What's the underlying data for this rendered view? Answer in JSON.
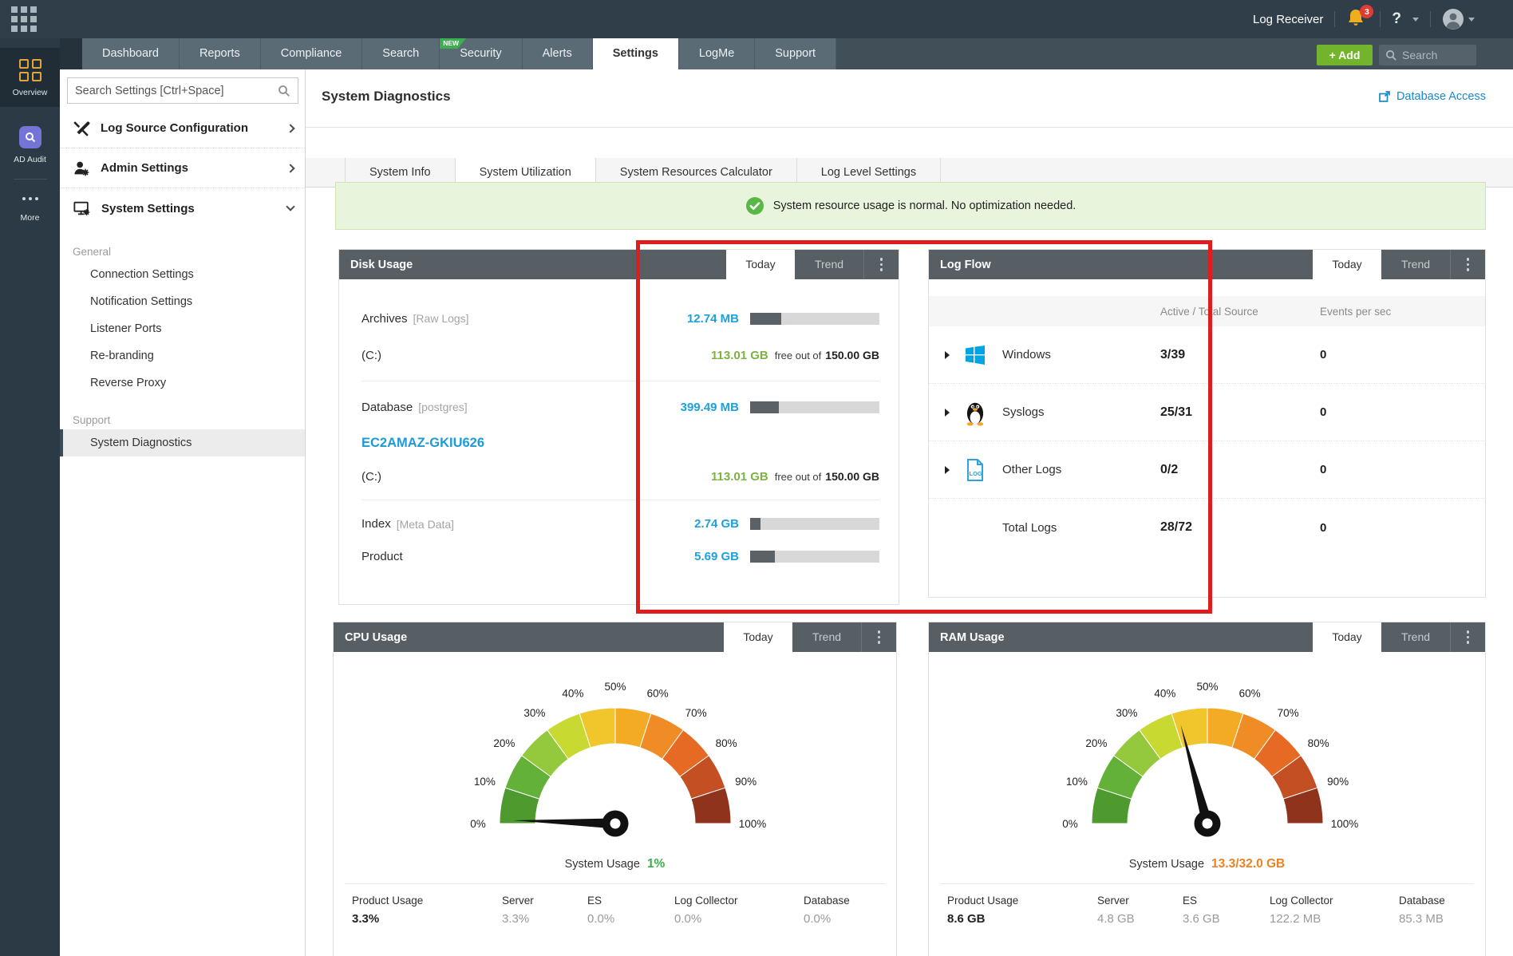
{
  "colors": {
    "topbar_bg": "#2f3e48",
    "navbar_tab_bg": "#5b6b76",
    "panel_header_bg": "#575f64",
    "accent_blue": "#1ea0da",
    "link_blue": "#1b87c9",
    "value_green": "#7db343",
    "usage_green": "#3cae4c",
    "usage_orange": "#ee8222",
    "add_green": "#72b52c",
    "annotation_red": "#de1e1e",
    "banner_bg": "#e9f4dc"
  },
  "topbar": {
    "log_receiver_label": "Log Receiver",
    "notification_count": "3",
    "help_label": "?"
  },
  "sidebar": {
    "overview_label": "Overview",
    "ad_audit_label": "AD Audit",
    "more_label": "More"
  },
  "navbar": {
    "tabs": [
      {
        "label": "Dashboard"
      },
      {
        "label": "Reports"
      },
      {
        "label": "Compliance"
      },
      {
        "label": "Search"
      },
      {
        "label": "Security",
        "badge": "NEW"
      },
      {
        "label": "Alerts"
      },
      {
        "label": "Settings"
      },
      {
        "label": "LogMe"
      },
      {
        "label": "Support"
      }
    ],
    "active_tab": "Settings",
    "add_label": "+ Add",
    "search_placeholder": "Search"
  },
  "settings_nav": {
    "search_placeholder": "Search Settings [Ctrl+Space]",
    "main_items": [
      {
        "label": "Log Source Configuration",
        "chevron": "right"
      },
      {
        "label": "Admin Settings",
        "chevron": "right"
      },
      {
        "label": "System Settings",
        "chevron": "down"
      }
    ],
    "sections": [
      {
        "title": "General",
        "items": [
          {
            "label": "Connection Settings"
          },
          {
            "label": "Notification Settings"
          },
          {
            "label": "Listener Ports"
          },
          {
            "label": "Re-branding"
          },
          {
            "label": "Reverse Proxy"
          }
        ]
      },
      {
        "title": "Support",
        "items": [
          {
            "label": "System Diagnostics",
            "active": true
          }
        ]
      }
    ]
  },
  "page": {
    "title": "System Diagnostics",
    "database_access_label": "Database Access",
    "tabs": [
      {
        "label": "System Info"
      },
      {
        "label": "System Utilization"
      },
      {
        "label": "System Resources Calculator"
      },
      {
        "label": "Log Level Settings"
      }
    ],
    "active_tab": "System Utilization",
    "banner_text": "System resource usage is normal. No optimization needed."
  },
  "disk_usage": {
    "title": "Disk Usage",
    "today_label": "Today",
    "trend_label": "Trend",
    "archives": {
      "name": "Archives",
      "tag": "[Raw Logs]",
      "value": "12.74 MB",
      "bar_pct": 24
    },
    "archives_drive": {
      "name": "(C:)",
      "free": "113.01 GB",
      "free_text": "free out of",
      "total": "150.00 GB"
    },
    "database": {
      "name": "Database",
      "tag": "[postgres]",
      "value": "399.49 MB",
      "bar_pct": 22
    },
    "host_link": "EC2AMAZ-GKIU626",
    "database_drive": {
      "name": "(C:)",
      "free": "113.01 GB",
      "free_text": "free out of",
      "total": "150.00 GB"
    },
    "index": {
      "name": "Index",
      "tag": "[Meta Data]",
      "value": "2.74 GB",
      "bar_pct": 8
    },
    "product": {
      "name": "Product",
      "value": "5.69 GB",
      "bar_pct": 19
    }
  },
  "log_flow": {
    "title": "Log Flow",
    "today_label": "Today",
    "trend_label": "Trend",
    "col_source": "Active / Total Source",
    "col_eps": "Events per sec",
    "rows": [
      {
        "label": "Windows",
        "ratio": "3/39",
        "eps": "0"
      },
      {
        "label": "Syslogs",
        "ratio": "25/31",
        "eps": "0"
      },
      {
        "label": "Other Logs",
        "ratio": "0/2",
        "eps": "0"
      },
      {
        "label": "Total Logs",
        "ratio": "28/72",
        "eps": "0"
      }
    ]
  },
  "cpu": {
    "title": "CPU Usage",
    "today_label": "Today",
    "trend_label": "Trend",
    "usage_label": "System Usage",
    "usage_value": "1%",
    "needle_pct": 1,
    "stats": [
      {
        "label": "Product Usage",
        "value": "3.3%"
      },
      {
        "label": "Server",
        "value": "3.3%"
      },
      {
        "label": "ES",
        "value": "0.0%"
      },
      {
        "label": "Log Collector",
        "value": "0.0%"
      },
      {
        "label": "Database",
        "value": "0.0%"
      }
    ]
  },
  "ram": {
    "title": "RAM Usage",
    "today_label": "Today",
    "trend_label": "Trend",
    "usage_label": "System Usage",
    "usage_value": "13.3/32.0 GB",
    "needle_pct": 41.6,
    "stats": [
      {
        "label": "Product Usage",
        "value": "8.6 GB"
      },
      {
        "label": "Server",
        "value": "4.8 GB"
      },
      {
        "label": "ES",
        "value": "3.6 GB"
      },
      {
        "label": "Log Collector",
        "value": "122.2 MB"
      },
      {
        "label": "Database",
        "value": "85.3 MB"
      }
    ]
  },
  "gauge": {
    "labels": [
      "0%",
      "10%",
      "20%",
      "30%",
      "40%",
      "50%",
      "60%",
      "70%",
      "80%",
      "90%",
      "100%"
    ],
    "colors": [
      "#4e9a2f",
      "#63b138",
      "#94c83d",
      "#c8d932",
      "#f0c62c",
      "#f3ab26",
      "#ef8c26",
      "#e76a24",
      "#c44f23",
      "#90331c"
    ]
  },
  "chart_data": [
    {
      "type": "gauge",
      "title": "CPU Usage",
      "min": 0,
      "max": 100,
      "tick_labels": [
        "0%",
        "10%",
        "20%",
        "30%",
        "40%",
        "50%",
        "60%",
        "70%",
        "80%",
        "90%",
        "100%"
      ],
      "value_pct": 1,
      "system_usage": "1%",
      "stats": {
        "Product Usage": "3.3%",
        "Server": "3.3%",
        "ES": "0.0%",
        "Log Collector": "0.0%",
        "Database": "0.0%"
      }
    },
    {
      "type": "gauge",
      "title": "RAM Usage",
      "min": 0,
      "max": 100,
      "tick_labels": [
        "0%",
        "10%",
        "20%",
        "30%",
        "40%",
        "50%",
        "60%",
        "70%",
        "80%",
        "90%",
        "100%"
      ],
      "value_pct": 41.6,
      "system_usage": "13.3/32.0 GB",
      "stats": {
        "Product Usage": "8.6 GB",
        "Server": "4.8 GB",
        "ES": "3.6 GB",
        "Log Collector": "122.2 MB",
        "Database": "85.3 MB"
      }
    }
  ]
}
